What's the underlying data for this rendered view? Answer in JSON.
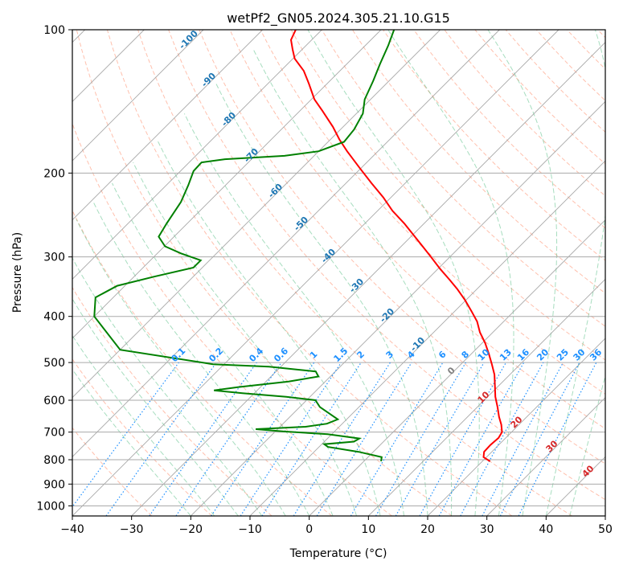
{
  "chart_data": {
    "type": "line",
    "title": "wetPf2_GN05.2024.305.21.10.G15",
    "xlabel": "Temperature (°C)",
    "ylabel": "Pressure (hPa)",
    "xlim": [
      -40,
      50
    ],
    "ylim": [
      1050,
      100
    ],
    "y_scale": "log",
    "skew": true,
    "grid": true,
    "x_ticks": [
      -40,
      -30,
      -20,
      -10,
      0,
      10,
      20,
      30,
      40,
      50
    ],
    "y_ticks": [
      100,
      200,
      300,
      400,
      500,
      600,
      700,
      800,
      900,
      1000
    ],
    "series": [
      {
        "color": "#ff0000",
        "points": [
          {
            "p": 806,
            "t": 21.3
          },
          {
            "p": 790,
            "t": 19.5
          },
          {
            "p": 770,
            "t": 18.7
          },
          {
            "p": 745,
            "t": 18.6
          },
          {
            "p": 720,
            "t": 18.8
          },
          {
            "p": 700,
            "t": 18.4
          },
          {
            "p": 675,
            "t": 17.0
          },
          {
            "p": 650,
            "t": 15.3
          },
          {
            "p": 620,
            "t": 13.4
          },
          {
            "p": 590,
            "t": 11.3
          },
          {
            "p": 560,
            "t": 9.4
          },
          {
            "p": 530,
            "t": 7.4
          },
          {
            "p": 505,
            "t": 5.3
          },
          {
            "p": 480,
            "t": 3.0
          },
          {
            "p": 455,
            "t": 0.5
          },
          {
            "p": 432,
            "t": -2.2
          },
          {
            "p": 410,
            "t": -4.5
          },
          {
            "p": 390,
            "t": -7.2
          },
          {
            "p": 370,
            "t": -10.1
          },
          {
            "p": 350,
            "t": -13.4
          },
          {
            "p": 335,
            "t": -16.2
          },
          {
            "p": 318,
            "t": -19.6
          },
          {
            "p": 300,
            "t": -23.2
          },
          {
            "p": 285,
            "t": -26.4
          },
          {
            "p": 270,
            "t": -29.8
          },
          {
            "p": 255,
            "t": -33.4
          },
          {
            "p": 240,
            "t": -37.5
          },
          {
            "p": 225,
            "t": -41.3
          },
          {
            "p": 210,
            "t": -45.7
          },
          {
            "p": 195,
            "t": -50.3
          },
          {
            "p": 180,
            "t": -55.2
          },
          {
            "p": 170,
            "t": -58.5
          },
          {
            "p": 160,
            "t": -61.7
          },
          {
            "p": 148,
            "t": -66.2
          },
          {
            "p": 140,
            "t": -69.5
          },
          {
            "p": 130,
            "t": -73.0
          },
          {
            "p": 122,
            "t": -76.1
          },
          {
            "p": 115,
            "t": -79.7
          },
          {
            "p": 110,
            "t": -81.6
          },
          {
            "p": 105,
            "t": -83.5
          },
          {
            "p": 100,
            "t": -84.4
          }
        ]
      },
      {
        "color": "#008000",
        "points": [
          {
            "p": 806,
            "t": 2.9
          },
          {
            "p": 790,
            "t": 2.3
          },
          {
            "p": 770,
            "t": -2.5
          },
          {
            "p": 752,
            "t": -8.5
          },
          {
            "p": 742,
            "t": -9.6
          },
          {
            "p": 733,
            "t": -5.0
          },
          {
            "p": 722,
            "t": -4.6
          },
          {
            "p": 707,
            "t": -10.7
          },
          {
            "p": 698,
            "t": -18.5
          },
          {
            "p": 690,
            "t": -23.7
          },
          {
            "p": 682,
            "t": -15.7
          },
          {
            "p": 672,
            "t": -12.6
          },
          {
            "p": 658,
            "t": -11.5
          },
          {
            "p": 640,
            "t": -13.9
          },
          {
            "p": 620,
            "t": -16.6
          },
          {
            "p": 600,
            "t": -18.5
          },
          {
            "p": 590,
            "t": -24.0
          },
          {
            "p": 580,
            "t": -32.0
          },
          {
            "p": 572,
            "t": -37.3
          },
          {
            "p": 563,
            "t": -33.7
          },
          {
            "p": 548,
            "t": -26.2
          },
          {
            "p": 535,
            "t": -22.0
          },
          {
            "p": 522,
            "t": -23.3
          },
          {
            "p": 510,
            "t": -32.0
          },
          {
            "p": 504,
            "t": -41.9
          },
          {
            "p": 470,
            "t": -60.0
          },
          {
            "p": 400,
            "t": -70.0
          },
          {
            "p": 365,
            "t": -73.0
          },
          {
            "p": 345,
            "t": -71.3
          },
          {
            "p": 330,
            "t": -66.6
          },
          {
            "p": 316,
            "t": -61.5
          },
          {
            "p": 305,
            "t": -61.5
          },
          {
            "p": 295,
            "t": -66.0
          },
          {
            "p": 285,
            "t": -69.9
          },
          {
            "p": 272,
            "t": -72.6
          },
          {
            "p": 255,
            "t": -73.5
          },
          {
            "p": 230,
            "t": -74.7
          },
          {
            "p": 212,
            "t": -76.3
          },
          {
            "p": 198,
            "t": -77.8
          },
          {
            "p": 190,
            "t": -77.9
          },
          {
            "p": 187,
            "t": -74.5
          },
          {
            "p": 184,
            "t": -65.0
          },
          {
            "p": 180,
            "t": -60.0
          },
          {
            "p": 172,
            "t": -57.3
          },
          {
            "p": 162,
            "t": -57.7
          },
          {
            "p": 150,
            "t": -58.9
          },
          {
            "p": 140,
            "t": -61.0
          },
          {
            "p": 128,
            "t": -62.7
          },
          {
            "p": 118,
            "t": -64.4
          },
          {
            "p": 108,
            "t": -66.1
          },
          {
            "p": 100,
            "t": -67.8
          }
        ]
      }
    ],
    "isotherm_labels": {
      "color": "#1f77b4",
      "values": [
        -100,
        -90,
        -80,
        -70,
        -60,
        -50,
        -40,
        -30,
        -20,
        -10
      ]
    },
    "mixing_ratio_labels": {
      "color": "#1e90ff",
      "values": [
        "0.1",
        "0.2",
        "0.4",
        "0.6",
        "1",
        "1.5",
        "2",
        "3",
        "4",
        "6",
        "8",
        "10",
        "13",
        "16",
        "20",
        "25",
        "30",
        "36"
      ]
    },
    "warm_isotherm_labels": {
      "values": [
        {
          "text": "0",
          "color": "#808080"
        },
        {
          "text": "10",
          "color": "#d62728"
        },
        {
          "text": "20",
          "color": "#d62728"
        },
        {
          "text": "30",
          "color": "#d62728"
        },
        {
          "text": "40",
          "color": "#d62728"
        }
      ]
    }
  }
}
